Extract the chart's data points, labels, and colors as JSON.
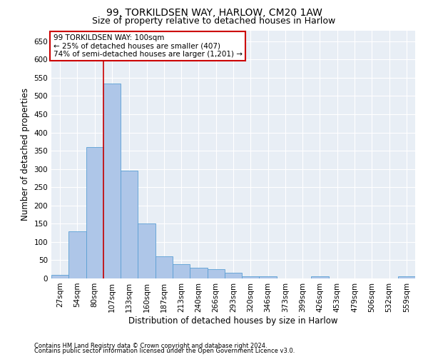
{
  "title": "99, TORKILDSEN WAY, HARLOW, CM20 1AW",
  "subtitle": "Size of property relative to detached houses in Harlow",
  "xlabel": "Distribution of detached houses by size in Harlow",
  "ylabel": "Number of detached properties",
  "footnote1": "Contains HM Land Registry data © Crown copyright and database right 2024.",
  "footnote2": "Contains public sector information licensed under the Open Government Licence v3.0.",
  "annotation_title": "99 TORKILDSEN WAY: 100sqm",
  "annotation_line1": "← 25% of detached houses are smaller (407)",
  "annotation_line2": "74% of semi-detached houses are larger (1,201) →",
  "bar_color": "#aec6e8",
  "bar_edge_color": "#5a9fd4",
  "vline_color": "#cc0000",
  "annotation_box_color": "#cc0000",
  "background_color": "#e8eef5",
  "categories": [
    "27sqm",
    "54sqm",
    "80sqm",
    "107sqm",
    "133sqm",
    "160sqm",
    "187sqm",
    "213sqm",
    "240sqm",
    "266sqm",
    "293sqm",
    "320sqm",
    "346sqm",
    "373sqm",
    "399sqm",
    "426sqm",
    "453sqm",
    "479sqm",
    "506sqm",
    "532sqm",
    "559sqm"
  ],
  "values": [
    10,
    130,
    360,
    535,
    295,
    150,
    60,
    40,
    30,
    25,
    15,
    5,
    5,
    0,
    0,
    5,
    0,
    0,
    0,
    0,
    5
  ],
  "ylim": [
    0,
    680
  ],
  "yticks": [
    0,
    50,
    100,
    150,
    200,
    250,
    300,
    350,
    400,
    450,
    500,
    550,
    600,
    650
  ],
  "vline_x_index": 3,
  "title_fontsize": 10,
  "subtitle_fontsize": 9,
  "axis_label_fontsize": 8.5,
  "tick_fontsize": 7.5,
  "footnote_fontsize": 6.0
}
